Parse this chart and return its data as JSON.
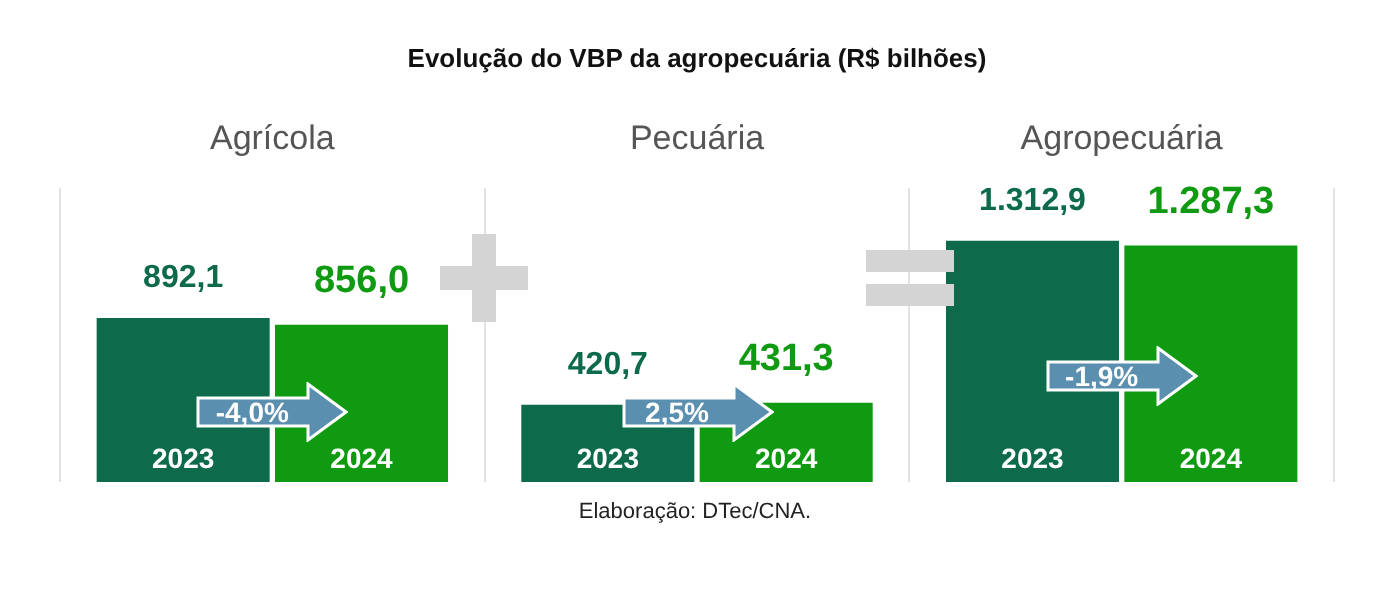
{
  "chart_data": {
    "type": "bar",
    "title": "Evolução do VBP da agropecuária (R$ bilhões)",
    "categories": [
      "Agrícola",
      "Pecuária",
      "Agropecuária"
    ],
    "series": [
      {
        "name": "2023",
        "color": "#0d6b4b",
        "values": [
          892.1,
          420.7,
          1312.9
        ],
        "value_labels": [
          "892,1",
          "420,7",
          "1.312,9"
        ]
      },
      {
        "name": "2024",
        "color": "#0f9a12",
        "values": [
          856.0,
          431.3,
          1287.3
        ],
        "value_labels": [
          "856,0",
          "431,3",
          "1.287,3"
        ]
      }
    ],
    "grid": "x",
    "legend": false,
    "annotations": [
      {
        "text": "-4,0%",
        "x": "Agrícola"
      },
      {
        "text": "2,5%",
        "x": "Pecuária"
      },
      {
        "text": "-1,9%",
        "x": "Agropecuária"
      },
      "Elaboração: DTec/CNA."
    ]
  }
}
